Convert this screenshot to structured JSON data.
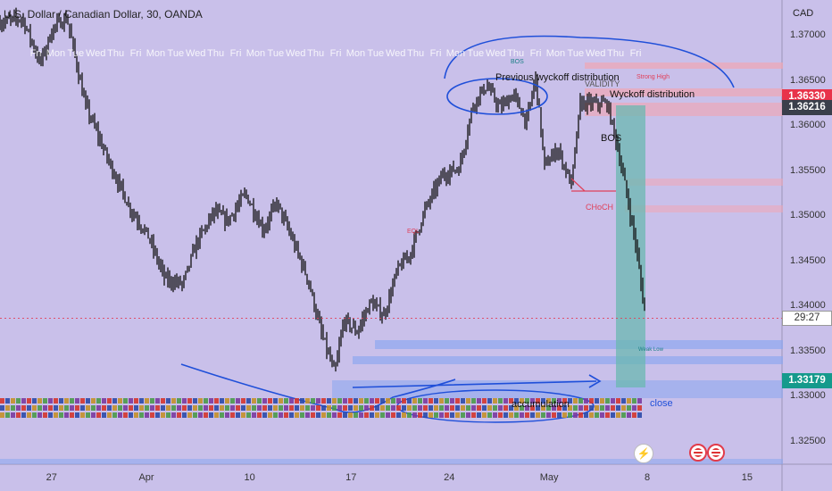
{
  "symbol_title": "U.S. Dollar / Canadian Dollar, 30, OANDA",
  "currency": "CAD",
  "price_axis": {
    "min": 1.3225,
    "max": 1.374,
    "ticks": [
      "1.37000",
      "1.36500",
      "1.36000",
      "1.35500",
      "1.35000",
      "1.34500",
      "1.34000",
      "1.33500",
      "1.33000",
      "1.32500"
    ]
  },
  "tick_values": [
    1.37,
    1.365,
    1.36,
    1.355,
    1.35,
    1.345,
    1.34,
    1.335,
    1.33,
    1.325
  ],
  "price_tags": [
    {
      "label": "1.36330",
      "value": 1.3633,
      "color": "#e8334a"
    },
    {
      "label": "1.36216",
      "value": 1.36216,
      "color": "#3a3f4b"
    },
    {
      "label": "1.33179",
      "value": 1.33179,
      "color": "#159a8c"
    }
  ],
  "countdown": {
    "label": "29:27",
    "value": 1.3387
  },
  "time_axis": [
    {
      "label": "27",
      "pos": 0.062
    },
    {
      "label": "Apr",
      "pos": 0.176
    },
    {
      "label": "10",
      "pos": 0.3
    },
    {
      "label": "17",
      "pos": 0.422
    },
    {
      "label": "24",
      "pos": 0.54
    },
    {
      "label": "May",
      "pos": 0.66
    },
    {
      "label": "8",
      "pos": 0.778
    },
    {
      "label": "15",
      "pos": 0.898
    }
  ],
  "weekday_labels": [
    "Fri",
    "Mon",
    "Tue",
    "Wed",
    "Thu",
    "Fri",
    "Mon",
    "Tue",
    "Wed",
    "Thu",
    "Fri",
    "Mon",
    "Tue",
    "Wed",
    "Thu",
    "Fri",
    "Mon",
    "Tue",
    "Wed",
    "Thu",
    "Fri",
    "Mon",
    "Tue",
    "Wed",
    "Thu",
    "Fri",
    "Mon",
    "Tue",
    "Wed",
    "Thu",
    "Fri"
  ],
  "annotations": {
    "prev_wyckoff": "Previous wyckoff distribution",
    "wyckoff": "Wyckoff distribution",
    "bos_1": "BOS",
    "bos_2": "BOS",
    "choch": "CHoCH",
    "eql": "EQL",
    "strong_high": "Strong High",
    "weak_low": "Weak Low",
    "accumulation": "accumulation",
    "close_note": "close",
    "validity": "VALIDITY"
  },
  "buttons": {
    "flash": "⚡"
  },
  "colors": {
    "background": "#c9c0ea",
    "candles": "#000000",
    "zone_blue": "#8fa8ef",
    "zone_red": "#f0a6b4",
    "projection_teal": "#6ab8b0",
    "drawing_blue": "#1f4fd9"
  }
}
